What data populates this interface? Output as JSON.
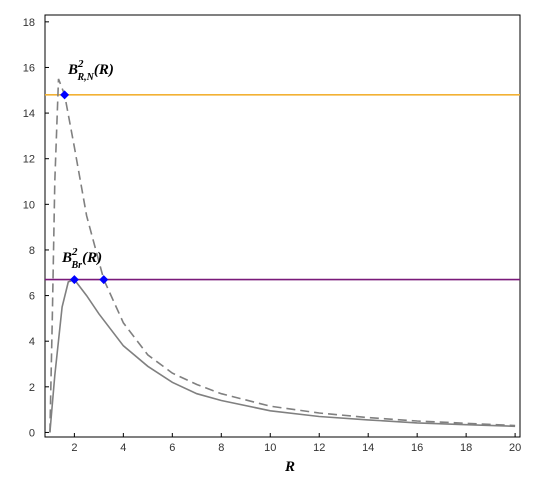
{
  "chart_data": {
    "type": "line",
    "x_label": "R",
    "xlim": [
      0.8,
      20.2
    ],
    "ylim": [
      -0.2,
      18.3
    ],
    "xticks": [
      2,
      4,
      6,
      8,
      10,
      12,
      14,
      16,
      18,
      20
    ],
    "yticks": [
      0,
      2,
      4,
      6,
      8,
      10,
      12,
      14,
      16,
      18
    ],
    "series": [
      {
        "name": "B_RN",
        "color": "#808080",
        "dash": true,
        "x": [
          1.0,
          1.1,
          1.2,
          1.35,
          1.6,
          2,
          2.5,
          3,
          3.2,
          4,
          5,
          6,
          7,
          8,
          10,
          12,
          14,
          16,
          18,
          20
        ],
        "values": [
          0,
          5,
          11,
          15.5,
          14.8,
          12.5,
          9.5,
          7.5,
          6.7,
          4.8,
          3.4,
          2.6,
          2.1,
          1.7,
          1.15,
          0.85,
          0.65,
          0.5,
          0.4,
          0.3
        ]
      },
      {
        "name": "B_Br",
        "color": "#808080",
        "dash": false,
        "x": [
          1.0,
          1.2,
          1.5,
          1.75,
          2,
          2.5,
          3,
          4,
          5,
          6,
          7,
          8,
          10,
          12,
          14,
          16,
          18,
          20
        ],
        "values": [
          0,
          2.5,
          5.5,
          6.6,
          6.7,
          6.0,
          5.2,
          3.8,
          2.9,
          2.2,
          1.7,
          1.4,
          0.95,
          0.7,
          0.55,
          0.42,
          0.34,
          0.27
        ]
      }
    ],
    "hlines": [
      {
        "value": 14.8,
        "color": "#f2b134"
      },
      {
        "value": 6.7,
        "color": "#7a1a7a"
      }
    ],
    "points": {
      "color": "#0000ff",
      "x": [
        1.6,
        2,
        3.2
      ],
      "values": [
        14.8,
        6.7,
        6.7
      ]
    },
    "annotations": [
      {
        "base": "B",
        "sup": "2",
        "sub": "R,N",
        "arg": "(R)"
      },
      {
        "base": "B",
        "sup": "2",
        "sub": "Br",
        "arg": "(R)"
      }
    ]
  }
}
